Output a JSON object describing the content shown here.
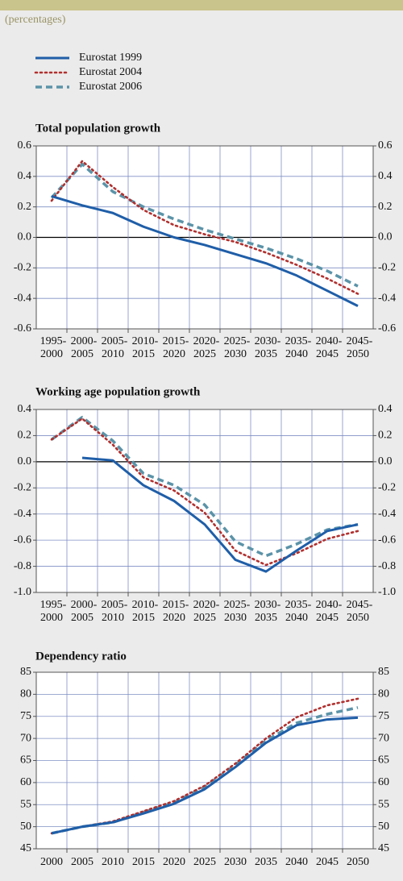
{
  "subtitle": "(percentages)",
  "chart_data": [
    {
      "type": "line",
      "title": "Total population growth",
      "categories": [
        [
          "1995-",
          "2000"
        ],
        [
          "2000-",
          "2005"
        ],
        [
          "2005-",
          "2010"
        ],
        [
          "2010-",
          "2015"
        ],
        [
          "2015-",
          "2020"
        ],
        [
          "2020-",
          "2025"
        ],
        [
          "2025-",
          "2030"
        ],
        [
          "2030-",
          "2035"
        ],
        [
          "2035-",
          "2040"
        ],
        [
          "2040-",
          "2045"
        ],
        [
          "2045-",
          "2050"
        ]
      ],
      "ylim": [
        -0.6,
        0.6
      ],
      "yticks": [
        {
          "value": -0.6,
          "label": "-0.6"
        },
        -0.4,
        -0.2,
        {
          "value": 0,
          "label": "0.0"
        },
        0.2,
        0.4,
        0.6
      ],
      "grid": true,
      "series": [
        {
          "name": "Eurostat 1999",
          "color": "#1f5ea8",
          "style": "solid",
          "values": [
            0.27,
            0.21,
            0.16,
            0.07,
            0.0,
            -0.05,
            -0.11,
            -0.17,
            -0.25,
            -0.35,
            -0.45
          ]
        },
        {
          "name": "Eurostat 2004",
          "color": "#b0302e",
          "style": "dotted",
          "values": [
            0.24,
            0.5,
            0.33,
            0.18,
            0.08,
            0.02,
            -0.03,
            -0.1,
            -0.18,
            -0.27,
            -0.37
          ]
        },
        {
          "name": "Eurostat 2006",
          "color": "#5b93a8",
          "style": "dashed",
          "values": [
            0.26,
            0.48,
            0.3,
            0.2,
            0.12,
            0.05,
            -0.01,
            -0.07,
            -0.14,
            -0.22,
            -0.32
          ]
        }
      ]
    },
    {
      "type": "line",
      "title": "Working age population growth",
      "categories": [
        [
          "1995-",
          "2000"
        ],
        [
          "2000-",
          "2005"
        ],
        [
          "2005-",
          "2010"
        ],
        [
          "2010-",
          "2015"
        ],
        [
          "2015-",
          "2020"
        ],
        [
          "2020-",
          "2025"
        ],
        [
          "2025-",
          "2030"
        ],
        [
          "2030-",
          "2035"
        ],
        [
          "2035-",
          "2040"
        ],
        [
          "2040-",
          "2045"
        ],
        [
          "2045-",
          "2050"
        ]
      ],
      "ylim": [
        -1.0,
        0.4
      ],
      "yticks": [
        {
          "value": -1.0,
          "label": "-1.0"
        },
        -0.8,
        -0.6,
        -0.4,
        -0.2,
        {
          "value": 0,
          "label": "0.0"
        },
        0.2,
        0.4
      ],
      "grid": true,
      "series": [
        {
          "color": "#1f5ea8",
          "style": "solid",
          "values": [
            null,
            0.03,
            0.01,
            -0.18,
            -0.3,
            -0.48,
            -0.75,
            -0.84,
            -0.68,
            -0.53,
            -0.48
          ]
        },
        {
          "color": "#b0302e",
          "style": "dotted",
          "values": [
            0.17,
            0.33,
            0.13,
            -0.12,
            -0.22,
            -0.39,
            -0.68,
            -0.79,
            -0.7,
            -0.59,
            -0.53
          ]
        },
        {
          "color": "#5b93a8",
          "style": "dashed",
          "values": [
            0.17,
            0.34,
            0.16,
            -0.09,
            -0.18,
            -0.33,
            -0.61,
            -0.72,
            -0.63,
            -0.52,
            -0.48
          ]
        }
      ]
    },
    {
      "type": "line",
      "title": "Dependency ratio",
      "categories": [
        "2000",
        "2005",
        "2010",
        "2015",
        "2020",
        "2025",
        "2030",
        "2035",
        "2040",
        "2045",
        "2050"
      ],
      "ylim": [
        45,
        85
      ],
      "yticks": [
        45,
        50,
        55,
        60,
        65,
        70,
        75,
        80,
        85
      ],
      "grid": true,
      "series": [
        {
          "color": "#1f5ea8",
          "style": "solid",
          "values": [
            48.5,
            50,
            51,
            53,
            55.2,
            58.5,
            63.5,
            69,
            73,
            74.3,
            74.7
          ]
        },
        {
          "color": "#b0302e",
          "style": "dotted",
          "values": [
            48.5,
            50,
            51.2,
            53.5,
            55.8,
            59.3,
            64.3,
            70,
            74.8,
            77.5,
            79
          ]
        },
        {
          "color": "#5b93a8",
          "style": "dashed",
          "values": [
            48.5,
            50,
            51,
            53.3,
            55.5,
            59,
            64,
            69.5,
            73.5,
            75.5,
            77
          ]
        }
      ]
    }
  ]
}
